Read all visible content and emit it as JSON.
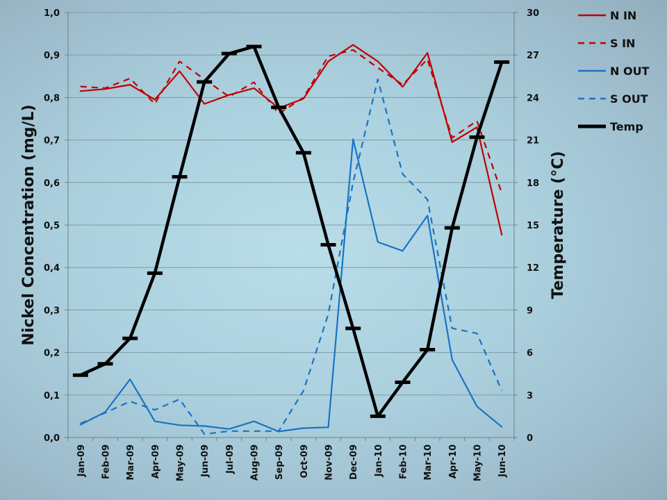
{
  "chart_data": {
    "type": "line",
    "categories": [
      "Jan-09",
      "Feb-09",
      "Mar-09",
      "Apr-09",
      "May-09",
      "Jun-09",
      "Jul-09",
      "Aug-09",
      "Sep-09",
      "Oct-09",
      "Nov-09",
      "Dec-09",
      "Jan-10",
      "Feb-10",
      "Mar-10",
      "Apr-10",
      "May-10",
      "Jun-10"
    ],
    "ylabel": "Nickel Concentration (mg/L)",
    "y2label": "Temperature (°C)",
    "ylim": [
      0,
      1
    ],
    "y2lim": [
      0,
      30
    ],
    "yticks": [
      "0,0",
      "0,1",
      "0,2",
      "0,3",
      "0,4",
      "0,5",
      "0,6",
      "0,7",
      "0,8",
      "0,9",
      "1,0"
    ],
    "y2ticks": [
      "0",
      "3",
      "6",
      "9",
      "12",
      "15",
      "18",
      "21",
      "24",
      "27",
      "30"
    ],
    "grid": true,
    "legend_position": "top-right",
    "series": [
      {
        "name": "N IN",
        "axis": "left",
        "color": "#c00000",
        "style": "solid",
        "values": [
          0.815,
          0.82,
          0.83,
          0.795,
          0.862,
          0.785,
          0.806,
          0.822,
          0.775,
          0.797,
          0.885,
          0.924,
          0.885,
          0.825,
          0.905,
          0.695,
          0.73,
          0.477
        ]
      },
      {
        "name": "S IN",
        "axis": "left",
        "color": "#c00000",
        "style": "dashed",
        "values": [
          0.826,
          0.822,
          0.845,
          0.785,
          0.885,
          0.843,
          0.802,
          0.836,
          0.762,
          0.8,
          0.897,
          0.912,
          0.87,
          0.83,
          0.89,
          0.705,
          0.745,
          0.575
        ]
      },
      {
        "name": "N OUT",
        "axis": "left",
        "color": "#1874c4",
        "style": "solid",
        "values": [
          0.03,
          0.06,
          0.137,
          0.038,
          0.029,
          0.027,
          0.02,
          0.038,
          0.014,
          0.022,
          0.024,
          0.702,
          0.46,
          0.439,
          0.522,
          0.183,
          0.073,
          0.025
        ]
      },
      {
        "name": "S OUT",
        "axis": "left",
        "color": "#1874c4",
        "style": "dashed",
        "values": [
          0.033,
          0.058,
          0.085,
          0.065,
          0.09,
          0.008,
          0.015,
          0.015,
          0.015,
          0.11,
          0.29,
          0.6,
          0.843,
          0.62,
          0.56,
          0.257,
          0.245,
          0.11
        ]
      },
      {
        "name": "Temp",
        "axis": "right",
        "color": "#000000",
        "style": "solid-thick",
        "values": [
          4.4,
          5.2,
          7.0,
          11.6,
          18.4,
          25.1,
          27.1,
          27.6,
          23.3,
          20.1,
          13.6,
          7.7,
          1.5,
          3.9,
          6.2,
          14.8,
          21.2,
          26.5
        ]
      }
    ]
  }
}
